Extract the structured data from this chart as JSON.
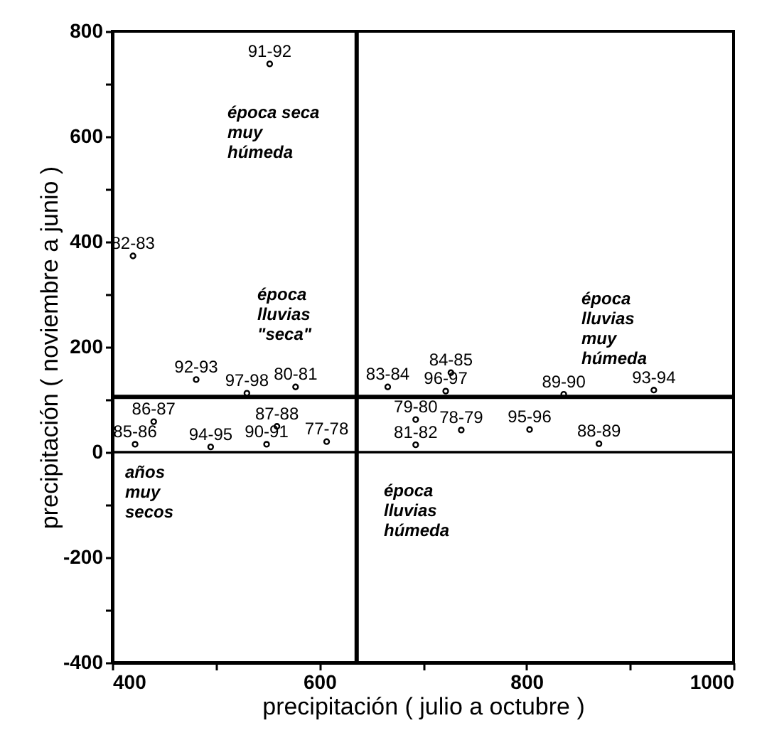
{
  "chart_data": {
    "type": "scatter",
    "xlabel": "precipitación  ( julio a octubre )",
    "ylabel": "precipitación  ( noviembre a junio )",
    "x": [
      552,
      420,
      481,
      577,
      530,
      559,
      440,
      422,
      495,
      549,
      607,
      666,
      722,
      727,
      693,
      693,
      737,
      803,
      870,
      836,
      923
    ],
    "values": [
      738,
      373,
      138,
      124,
      112,
      49,
      58,
      15,
      10,
      15,
      20,
      124,
      116,
      151,
      62,
      14,
      42,
      43,
      16,
      110,
      118
    ],
    "color": "#000000",
    "marker": "circle",
    "xlim": [
      400,
      1000
    ],
    "ylim": [
      -400,
      800
    ],
    "xticks": [
      400,
      {
        "value": 500,
        "label": null
      },
      600,
      {
        "value": 700,
        "label": null
      },
      800,
      {
        "value": 900,
        "label": null
      },
      1000
    ],
    "yticks": [
      -400,
      {
        "value": -300,
        "label": null
      },
      -200,
      {
        "value": -100,
        "label": null
      },
      0,
      {
        "value": 100,
        "label": null
      },
      200,
      {
        "value": 300,
        "label": null
      },
      400,
      {
        "value": 500,
        "label": null
      },
      600,
      {
        "value": 700,
        "label": null
      },
      800
    ],
    "grid": false,
    "ref_lines": [
      {
        "axis": "x",
        "value": 636,
        "label": null,
        "color": "#000000"
      },
      {
        "axis": "y",
        "value": 105,
        "label": null,
        "color": "#000000"
      },
      {
        "axis": "y",
        "value": 0,
        "label": null,
        "color": "#000000"
      }
    ],
    "annotations": [
      {
        "text": "91-92",
        "x": 552,
        "y": 738
      },
      {
        "text": "82-83",
        "x": 420,
        "y": 373
      },
      {
        "text": "92-93",
        "x": 481,
        "y": 138
      },
      {
        "text": "80-81",
        "x": 577,
        "y": 124
      },
      {
        "text": "97-98",
        "x": 530,
        "y": 112
      },
      {
        "text": "87-88",
        "x": 559,
        "y": 49
      },
      {
        "text": "86-87",
        "x": 440,
        "y": 58
      },
      {
        "text": "85-86",
        "x": 422,
        "y": 15
      },
      {
        "text": "94-95",
        "x": 495,
        "y": 10
      },
      {
        "text": "90-91",
        "x": 549,
        "y": 15
      },
      {
        "text": "77-78",
        "x": 607,
        "y": 20
      },
      {
        "text": "83-84",
        "x": 666,
        "y": 124
      },
      {
        "text": "96-97",
        "x": 722,
        "y": 116
      },
      {
        "text": "84-85",
        "x": 727,
        "y": 151
      },
      {
        "text": "79-80",
        "x": 693,
        "y": 62
      },
      {
        "text": "81-82",
        "x": 693,
        "y": 14
      },
      {
        "text": "78-79",
        "x": 737,
        "y": 42
      },
      {
        "text": "95-96",
        "x": 803,
        "y": 43
      },
      {
        "text": "88-89",
        "x": 870,
        "y": 16
      },
      {
        "text": "89-90",
        "x": 836,
        "y": 110
      },
      {
        "text": "93-94",
        "x": 923,
        "y": 118
      },
      "época seca\nmuy\nhúmeda",
      "época\nlluvias\n\"seca\"",
      "época\nlluvias\nmuy\nhúmeda",
      "años\nmuy\nsecos",
      "época\nlluvias\nhúmeda"
    ]
  }
}
